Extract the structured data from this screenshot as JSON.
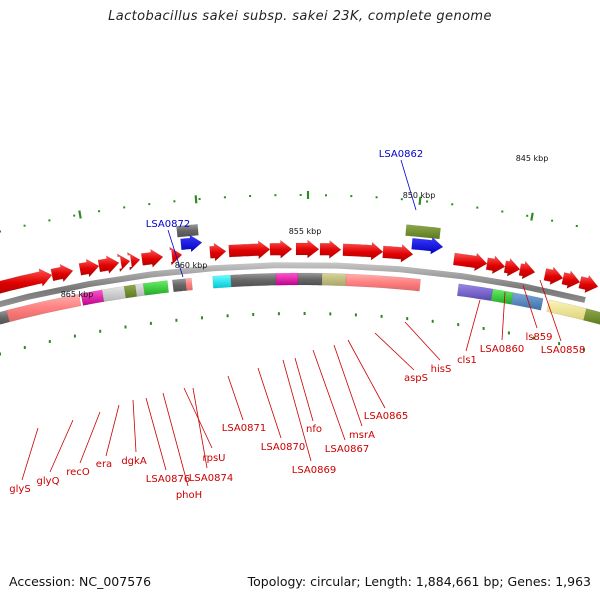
{
  "title": "Lactobacillus sakei subsp. sakei 23K, complete genome",
  "footer": {
    "accession": "Accession: NC_007576",
    "topology": "Topology: circular; Length: 1,884,661 bp; Genes: 1,963"
  },
  "scale_ticks": [
    "845 kbp",
    "850 kbp",
    "855 kbp",
    "860 kbp",
    "865 kbp"
  ],
  "blue_labels": [
    "LSA0862",
    "LSA0872"
  ],
  "gene_labels": [
    "glyS",
    "glyQ",
    "recO",
    "era",
    "dgkA",
    "LSA0876",
    "phoH",
    "rpsU",
    "LSA0874",
    "LSA0871",
    "LSA0870",
    "LSA0869",
    "nfo",
    "LSA0867",
    "msrA",
    "LSA0865",
    "aspS",
    "hisS",
    "cls1",
    "LSA0860",
    "ls859",
    "LSA0858"
  ],
  "colors": {
    "forward_gene": "#ee0000",
    "reverse_gene": "#ff8888",
    "backbone": "#808080",
    "tick": "#2e8b22",
    "label_red": "#cc0000",
    "label_blue": "#0000cc"
  }
}
